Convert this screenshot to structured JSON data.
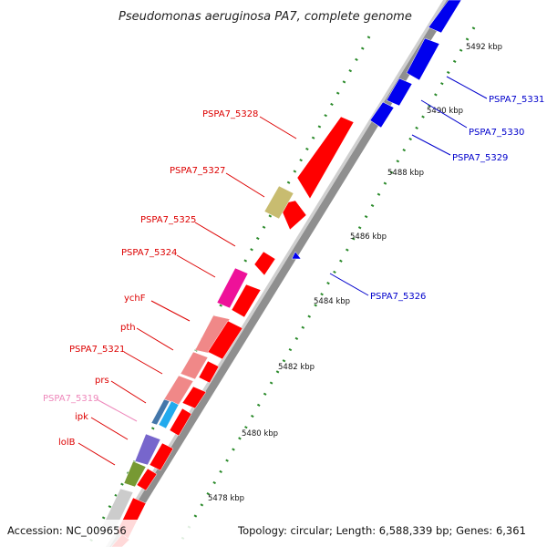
{
  "title": "Pseudomonas aeruginosa PA7, complete genome",
  "footer": {
    "accession": "Accession: NC_009656",
    "topology": "Topology: circular; Length: 6,588,339 bp; Genes: 6,361"
  },
  "ticks": [
    "5478 kbp",
    "5480 kbp",
    "5482 kbp",
    "5484 kbp",
    "5486 kbp",
    "5488 kbp",
    "5490 kbp",
    "5492 kbp"
  ],
  "genes_left": [
    {
      "label": "PSPA7_5328",
      "color": "#dd0000"
    },
    {
      "label": "PSPA7_5327",
      "color": "#dd0000"
    },
    {
      "label": "PSPA7_5325",
      "color": "#dd0000"
    },
    {
      "label": "PSPA7_5324",
      "color": "#dd0000"
    },
    {
      "label": "ychF",
      "color": "#dd0000"
    },
    {
      "label": "pth",
      "color": "#dd0000"
    },
    {
      "label": "PSPA7_5321",
      "color": "#dd0000"
    },
    {
      "label": "prs",
      "color": "#dd0000"
    },
    {
      "label": "PSPA7_5319",
      "color": "#ee88bb"
    },
    {
      "label": "ipk",
      "color": "#dd0000"
    },
    {
      "label": "lolB",
      "color": "#dd0000"
    }
  ],
  "genes_right": [
    {
      "label": "PSPA7_5331",
      "color": "#0000cc"
    },
    {
      "label": "PSPA7_5330",
      "color": "#0000cc"
    },
    {
      "label": "PSPA7_5329",
      "color": "#0000cc"
    },
    {
      "label": "PSPA7_5326",
      "color": "#0000cc"
    }
  ],
  "colors": {
    "forward_strand": "#ff0000",
    "reverse_strand": "#0000ee",
    "backbone": "#999999",
    "tick_dots": "#2a8a2a",
    "feature_khaki": "#c8bc70",
    "feature_magenta": "#ee1199",
    "feature_pink": "#f08888",
    "feature_cyan": "#22aaee",
    "feature_steelblue": "#4477aa",
    "feature_purple": "#7766cc",
    "feature_olive": "#779933",
    "feature_grey": "#cccccc"
  }
}
